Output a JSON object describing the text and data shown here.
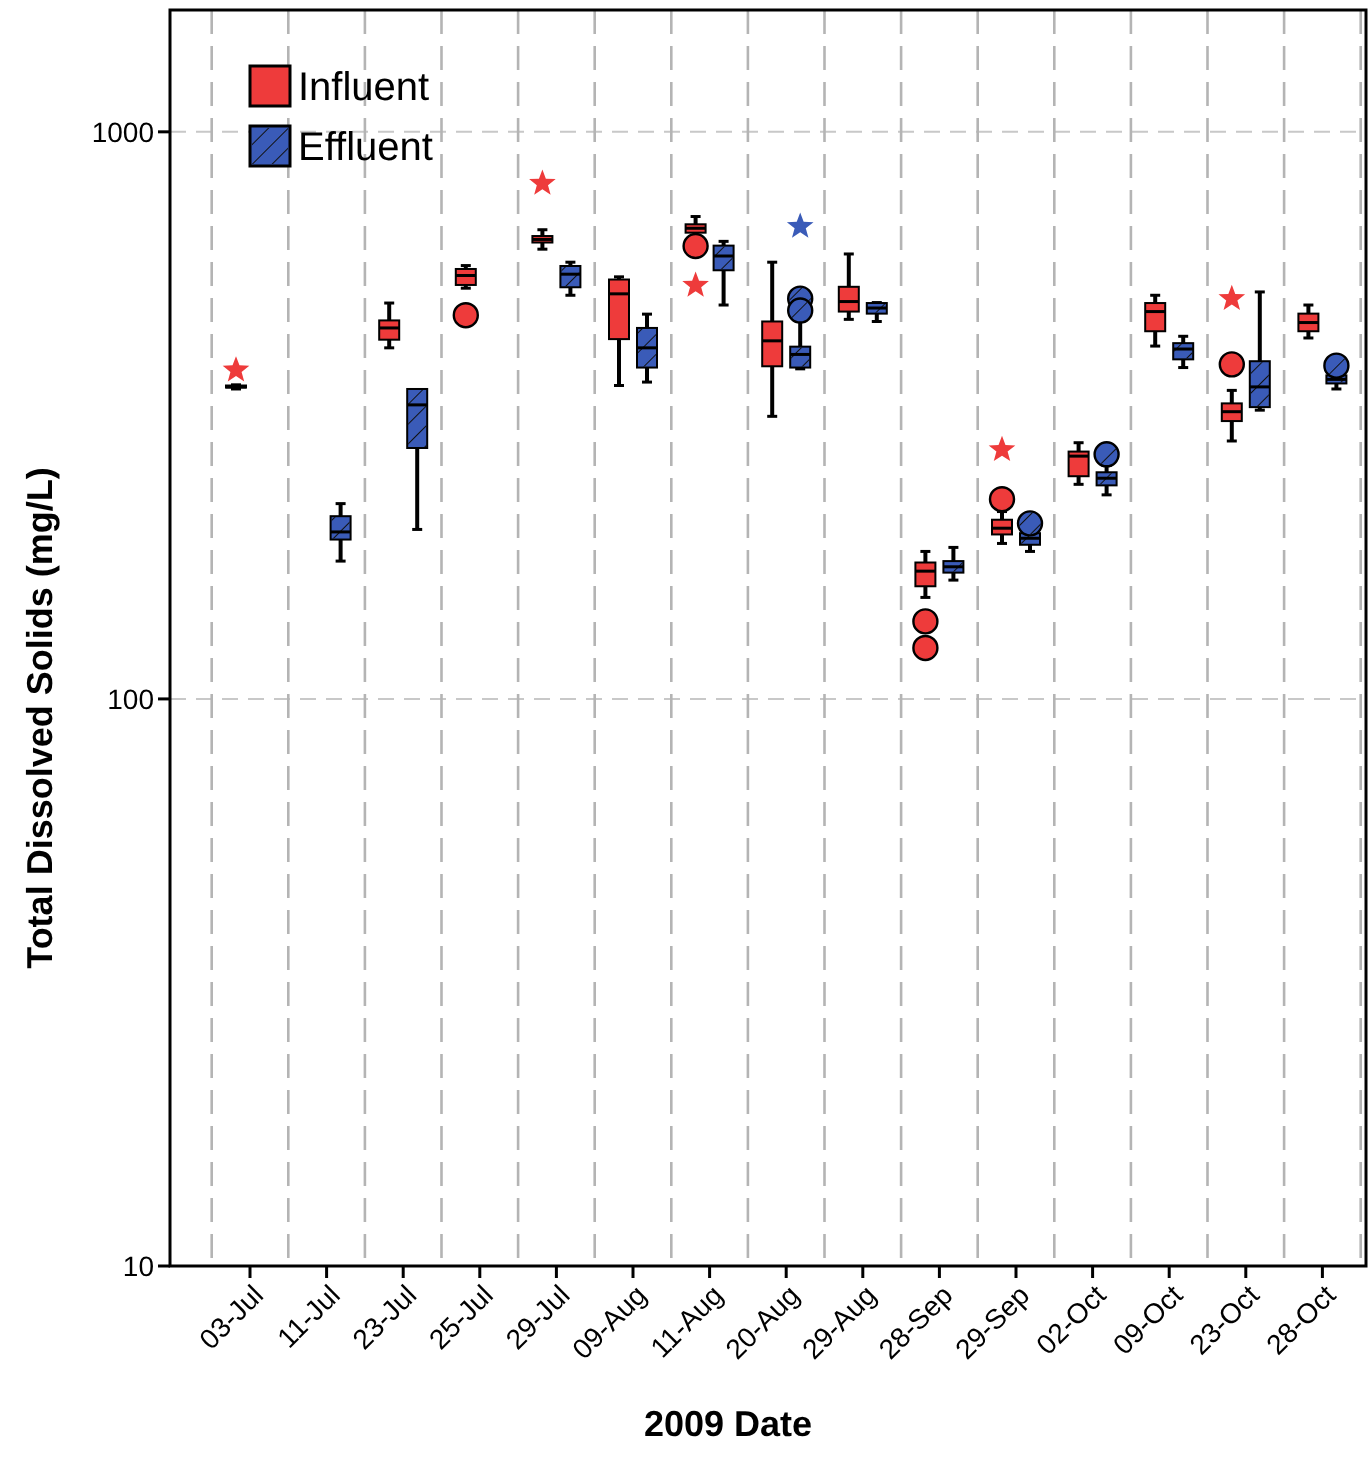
{
  "chart_data": {
    "type": "box",
    "xlabel": "2009 Date",
    "ylabel": "Total Dissolved Solids (mg/L)",
    "log": true,
    "ylim": [
      10,
      1640
    ],
    "yticks": [
      10,
      100,
      1000
    ],
    "grid": true,
    "legend": "top left",
    "categories": [
      "03-Jul",
      "11-Jul",
      "23-Jul",
      "25-Jul",
      "29-Jul",
      "09-Aug",
      "11-Aug",
      "20-Aug",
      "29-Aug",
      "28-Sep",
      "29-Sep",
      "02-Oct",
      "09-Oct",
      "23-Oct",
      "28-Oct"
    ],
    "series": [
      {
        "name": "Influent",
        "color": "#ee3b3b",
        "boxes": [
          {
            "low": 352,
            "q1": 354,
            "median": 355,
            "q3": 357,
            "high": 358
          },
          null,
          {
            "low": 416,
            "q1": 430,
            "median": 451,
            "q3": 465,
            "high": 499
          },
          {
            "low": 530,
            "q1": 537,
            "median": 558,
            "q3": 573,
            "high": 581,
            "outliers": [
              475
            ]
          },
          {
            "low": 621,
            "q1": 638,
            "median": 646,
            "q3": 655,
            "high": 672
          },
          {
            "low": 357,
            "q1": 431,
            "median": 518,
            "q3": 549,
            "high": 555
          },
          {
            "low": 664,
            "q1": 664,
            "median": 676,
            "q3": 687,
            "high": 709,
            "outliers": [
              629
            ]
          },
          {
            "low": 315,
            "q1": 386,
            "median": 428,
            "q3": 463,
            "high": 589
          },
          {
            "low": 467,
            "q1": 482,
            "median": 502,
            "q3": 533,
            "high": 609
          },
          {
            "low": 151,
            "q1": 158,
            "median": 168,
            "q3": 174,
            "high": 182,
            "outliers": [
              137,
              123
            ]
          },
          {
            "low": 188,
            "q1": 195,
            "median": 200,
            "q3": 207,
            "high": 214,
            "outliers": [
              225
            ]
          },
          {
            "low": 239,
            "q1": 247,
            "median": 268,
            "q3": 273,
            "high": 283
          },
          {
            "low": 419,
            "q1": 445,
            "median": 482,
            "q3": 499,
            "high": 515
          },
          {
            "low": 285,
            "q1": 309,
            "median": 321,
            "q3": 332,
            "high": 350,
            "outliers": [
              389
            ]
          },
          {
            "low": 433,
            "q1": 445,
            "median": 461,
            "q3": 478,
            "high": 495
          }
        ]
      },
      {
        "name": "Effluent",
        "color": "#3a5bb8",
        "boxes": [
          null,
          {
            "low": 175,
            "q1": 191,
            "median": 197,
            "q3": 210,
            "high": 221
          },
          {
            "low": 199,
            "q1": 277,
            "median": 330,
            "q3": 352,
            "high": 352
          },
          null,
          {
            "low": 515,
            "q1": 532,
            "median": 561,
            "q3": 580,
            "high": 589
          },
          {
            "low": 362,
            "q1": 384,
            "median": 416,
            "q3": 451,
            "high": 477
          },
          {
            "low": 495,
            "q1": 570,
            "median": 604,
            "q3": 630,
            "high": 641
          },
          {
            "low": 382,
            "q1": 384,
            "median": 405,
            "q3": 418,
            "high": 463,
            "outliers": [
              508,
              484
            ]
          },
          {
            "low": 463,
            "q1": 478,
            "median": 489,
            "q3": 499,
            "high": 500
          },
          {
            "low": 162,
            "q1": 167,
            "median": 171,
            "q3": 175,
            "high": 185
          },
          {
            "low": 182,
            "q1": 187,
            "median": 192,
            "q3": 196,
            "high": 200,
            "outliers": [
              204
            ]
          },
          {
            "low": 229,
            "q1": 238,
            "median": 245,
            "q3": 251,
            "high": 258,
            "outliers": [
              270
            ]
          },
          {
            "low": 384,
            "q1": 397,
            "median": 414,
            "q3": 424,
            "high": 436
          },
          {
            "low": 323,
            "q1": 327,
            "median": 355,
            "q3": 394,
            "high": 522
          },
          {
            "low": 352,
            "q1": 360,
            "median": 366,
            "q3": 372,
            "high": 380,
            "outliers": [
              387
            ]
          }
        ]
      },
      {
        "type": "scatter",
        "marker": "star",
        "color": "#ee3b3b",
        "x": [
          "03-Jul",
          "29-Jul",
          "11-Aug",
          "29-Sep",
          "23-Oct"
        ],
        "values": [
          380,
          811,
          536,
          275,
          508
        ]
      },
      {
        "type": "scatter",
        "marker": "star",
        "color": "#3a5bb8",
        "x": [
          "20-Aug"
        ],
        "values": [
          681
        ]
      }
    ]
  }
}
